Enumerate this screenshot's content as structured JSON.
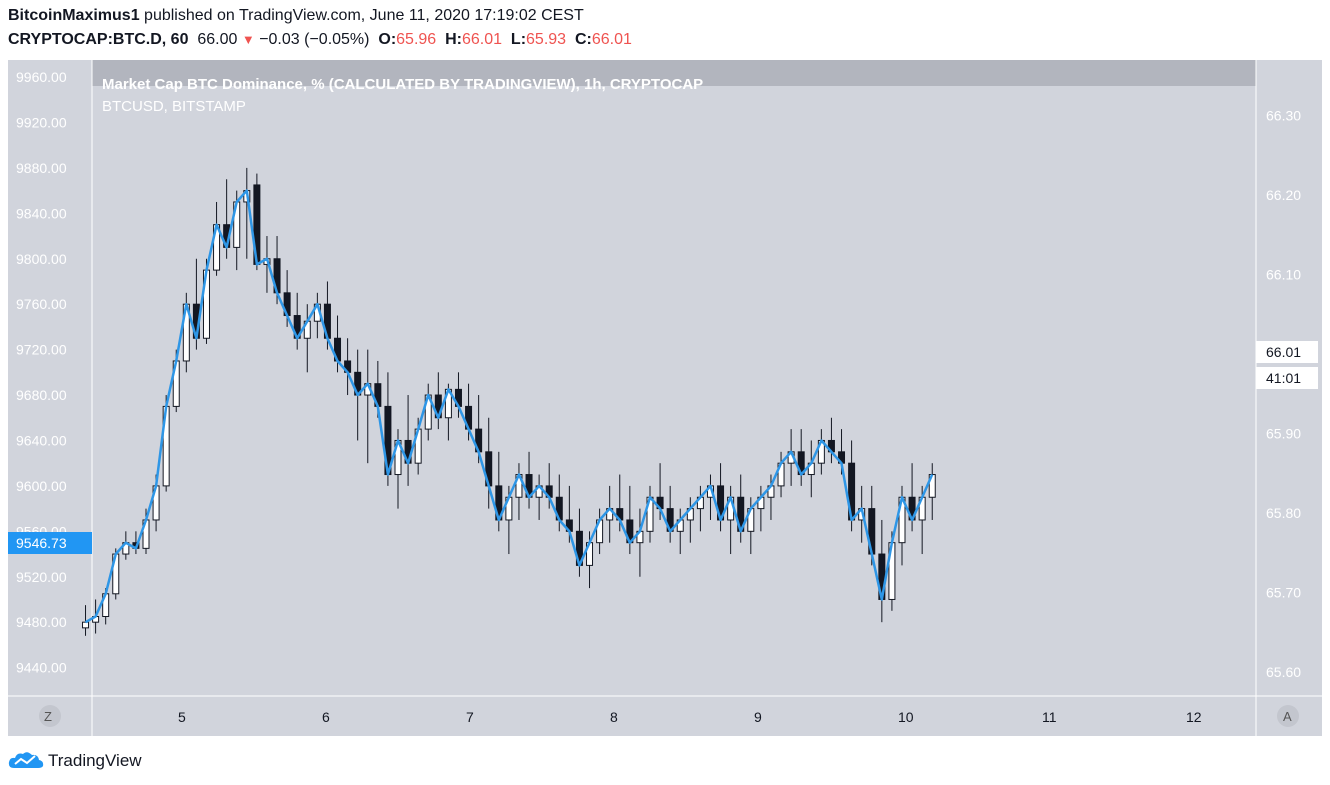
{
  "header": {
    "author": "BitcoinMaximus1",
    "published_text": "published on TradingView.com, June 11, 2020 17:19:02 CEST",
    "symbol": "CRYPTOCAP:BTC.D, 60",
    "last": "66.00",
    "change": "−0.03 (−0.05%)",
    "open_label": "O:",
    "open": "65.96",
    "high_label": "H:",
    "high": "66.01",
    "low_label": "L:",
    "low": "65.93",
    "close_label": "C:",
    "close": "66.01"
  },
  "legend": {
    "main_series": "Market Cap BTC Dominance, % (CALCULATED BY TRADINGVIEW), 1h, CRYPTOCAP",
    "overlay_series": "BTCUSD, BITSTAMP"
  },
  "footer": {
    "logo_text": "TradingView"
  },
  "axis_buttons": {
    "left": "Z",
    "right": "A"
  },
  "price_tags": {
    "left_value": "9546.73",
    "right_value": "66.01",
    "right_countdown": "41:01"
  },
  "colors": {
    "line": "#2e96e6",
    "background": "#d1d4dc",
    "candle_up": "#ffffff",
    "candle_down": "#131722",
    "tag_blue": "#2196f3"
  },
  "chart_data": {
    "type": "candlestick",
    "x_ticks": [
      "5",
      "6",
      "7",
      "8",
      "9",
      "10",
      "11",
      "12"
    ],
    "left_axis": {
      "series": "BTCUSD",
      "ticks": [
        "9440.00",
        "9480.00",
        "9520.00",
        "9560.00",
        "9600.00",
        "9640.00",
        "9680.00",
        "9720.00",
        "9760.00",
        "9800.00",
        "9840.00",
        "9880.00",
        "9920.00",
        "9960.00"
      ],
      "range": [
        9415,
        9975
      ]
    },
    "right_axis": {
      "series": "BTC.D",
      "ticks": [
        "65.60",
        "65.70",
        "65.80",
        "65.90",
        "66.00",
        "66.10",
        "66.20",
        "66.30"
      ],
      "range": [
        65.57,
        66.37
      ]
    },
    "candles_btcusd": [
      [
        4.33,
        9475,
        9495,
        9468,
        9480
      ],
      [
        4.4,
        9480,
        9500,
        9470,
        9485
      ],
      [
        4.47,
        9485,
        9510,
        9478,
        9505
      ],
      [
        4.54,
        9505,
        9545,
        9500,
        9540
      ],
      [
        4.61,
        9540,
        9560,
        9535,
        9550
      ],
      [
        4.68,
        9550,
        9560,
        9540,
        9545
      ],
      [
        4.75,
        9545,
        9580,
        9540,
        9570
      ],
      [
        4.82,
        9570,
        9610,
        9560,
        9600
      ],
      [
        4.89,
        9600,
        9680,
        9595,
        9670
      ],
      [
        4.96,
        9670,
        9720,
        9665,
        9710
      ],
      [
        5.03,
        9710,
        9770,
        9700,
        9760
      ],
      [
        5.1,
        9760,
        9800,
        9720,
        9730
      ],
      [
        5.17,
        9730,
        9800,
        9725,
        9790
      ],
      [
        5.24,
        9790,
        9850,
        9785,
        9830
      ],
      [
        5.31,
        9830,
        9870,
        9800,
        9810
      ],
      [
        5.38,
        9810,
        9860,
        9790,
        9850
      ],
      [
        5.45,
        9850,
        9880,
        9800,
        9860
      ],
      [
        5.52,
        9865,
        9875,
        9790,
        9795
      ],
      [
        5.59,
        9795,
        9820,
        9770,
        9800
      ],
      [
        5.66,
        9800,
        9820,
        9760,
        9770
      ],
      [
        5.73,
        9770,
        9790,
        9740,
        9750
      ],
      [
        5.8,
        9750,
        9770,
        9720,
        9730
      ],
      [
        5.87,
        9730,
        9760,
        9700,
        9745
      ],
      [
        5.94,
        9745,
        9770,
        9730,
        9760
      ],
      [
        6.01,
        9760,
        9780,
        9720,
        9730
      ],
      [
        6.08,
        9730,
        9750,
        9700,
        9710
      ],
      [
        6.15,
        9710,
        9730,
        9680,
        9700
      ],
      [
        6.22,
        9700,
        9720,
        9640,
        9680
      ],
      [
        6.29,
        9680,
        9720,
        9620,
        9690
      ],
      [
        6.36,
        9690,
        9710,
        9660,
        9670
      ],
      [
        6.43,
        9670,
        9700,
        9600,
        9610
      ],
      [
        6.5,
        9610,
        9650,
        9580,
        9640
      ],
      [
        6.57,
        9640,
        9680,
        9600,
        9620
      ],
      [
        6.64,
        9620,
        9660,
        9610,
        9650
      ],
      [
        6.71,
        9650,
        9690,
        9640,
        9680
      ],
      [
        6.78,
        9680,
        9700,
        9650,
        9660
      ],
      [
        6.85,
        9660,
        9690,
        9640,
        9685
      ],
      [
        6.92,
        9685,
        9700,
        9660,
        9670
      ],
      [
        6.99,
        9670,
        9690,
        9640,
        9650
      ],
      [
        7.06,
        9650,
        9680,
        9620,
        9630
      ],
      [
        7.13,
        9630,
        9660,
        9580,
        9600
      ],
      [
        7.2,
        9600,
        9630,
        9560,
        9570
      ],
      [
        7.27,
        9570,
        9600,
        9540,
        9590
      ],
      [
        7.34,
        9590,
        9620,
        9570,
        9610
      ],
      [
        7.41,
        9610,
        9630,
        9580,
        9590
      ],
      [
        7.48,
        9590,
        9610,
        9570,
        9600
      ],
      [
        7.55,
        9600,
        9620,
        9580,
        9590
      ],
      [
        7.62,
        9590,
        9610,
        9560,
        9570
      ],
      [
        7.69,
        9570,
        9600,
        9550,
        9560
      ],
      [
        7.76,
        9560,
        9580,
        9520,
        9530
      ],
      [
        7.83,
        9530,
        9560,
        9510,
        9550
      ],
      [
        7.9,
        9550,
        9580,
        9540,
        9570
      ],
      [
        7.97,
        9570,
        9600,
        9550,
        9580
      ],
      [
        8.04,
        9580,
        9610,
        9560,
        9570
      ],
      [
        8.11,
        9570,
        9600,
        9540,
        9550
      ],
      [
        8.18,
        9550,
        9580,
        9520,
        9560
      ],
      [
        8.25,
        9560,
        9600,
        9550,
        9590
      ],
      [
        8.32,
        9590,
        9620,
        9570,
        9580
      ],
      [
        8.39,
        9580,
        9600,
        9550,
        9560
      ],
      [
        8.46,
        9560,
        9580,
        9540,
        9570
      ],
      [
        8.53,
        9570,
        9590,
        9550,
        9580
      ],
      [
        8.6,
        9580,
        9600,
        9560,
        9590
      ],
      [
        8.67,
        9590,
        9610,
        9570,
        9600
      ],
      [
        8.74,
        9600,
        9620,
        9560,
        9570
      ],
      [
        8.81,
        9570,
        9600,
        9540,
        9590
      ],
      [
        8.88,
        9590,
        9610,
        9550,
        9560
      ],
      [
        8.95,
        9560,
        9590,
        9540,
        9580
      ],
      [
        9.02,
        9580,
        9600,
        9560,
        9590
      ],
      [
        9.09,
        9590,
        9610,
        9570,
        9600
      ],
      [
        9.16,
        9600,
        9630,
        9590,
        9620
      ],
      [
        9.23,
        9620,
        9650,
        9600,
        9630
      ],
      [
        9.3,
        9630,
        9650,
        9600,
        9610
      ],
      [
        9.37,
        9610,
        9640,
        9590,
        9620
      ],
      [
        9.44,
        9620,
        9650,
        9610,
        9640
      ],
      [
        9.51,
        9640,
        9660,
        9620,
        9630
      ],
      [
        9.58,
        9630,
        9650,
        9610,
        9620
      ],
      [
        9.65,
        9620,
        9640,
        9560,
        9570
      ],
      [
        9.72,
        9570,
        9600,
        9550,
        9580
      ],
      [
        9.79,
        9580,
        9600,
        9530,
        9540
      ],
      [
        9.86,
        9540,
        9570,
        9480,
        9500
      ],
      [
        9.93,
        9500,
        9560,
        9490,
        9550
      ],
      [
        10.0,
        9550,
        9600,
        9530,
        9590
      ],
      [
        10.07,
        9590,
        9620,
        9560,
        9570
      ],
      [
        10.14,
        9570,
        9600,
        9540,
        9590
      ],
      [
        10.21,
        9590,
        9620,
        9570,
        9610
      ]
    ],
    "line_btc_d_note": "blue line overlay"
  }
}
